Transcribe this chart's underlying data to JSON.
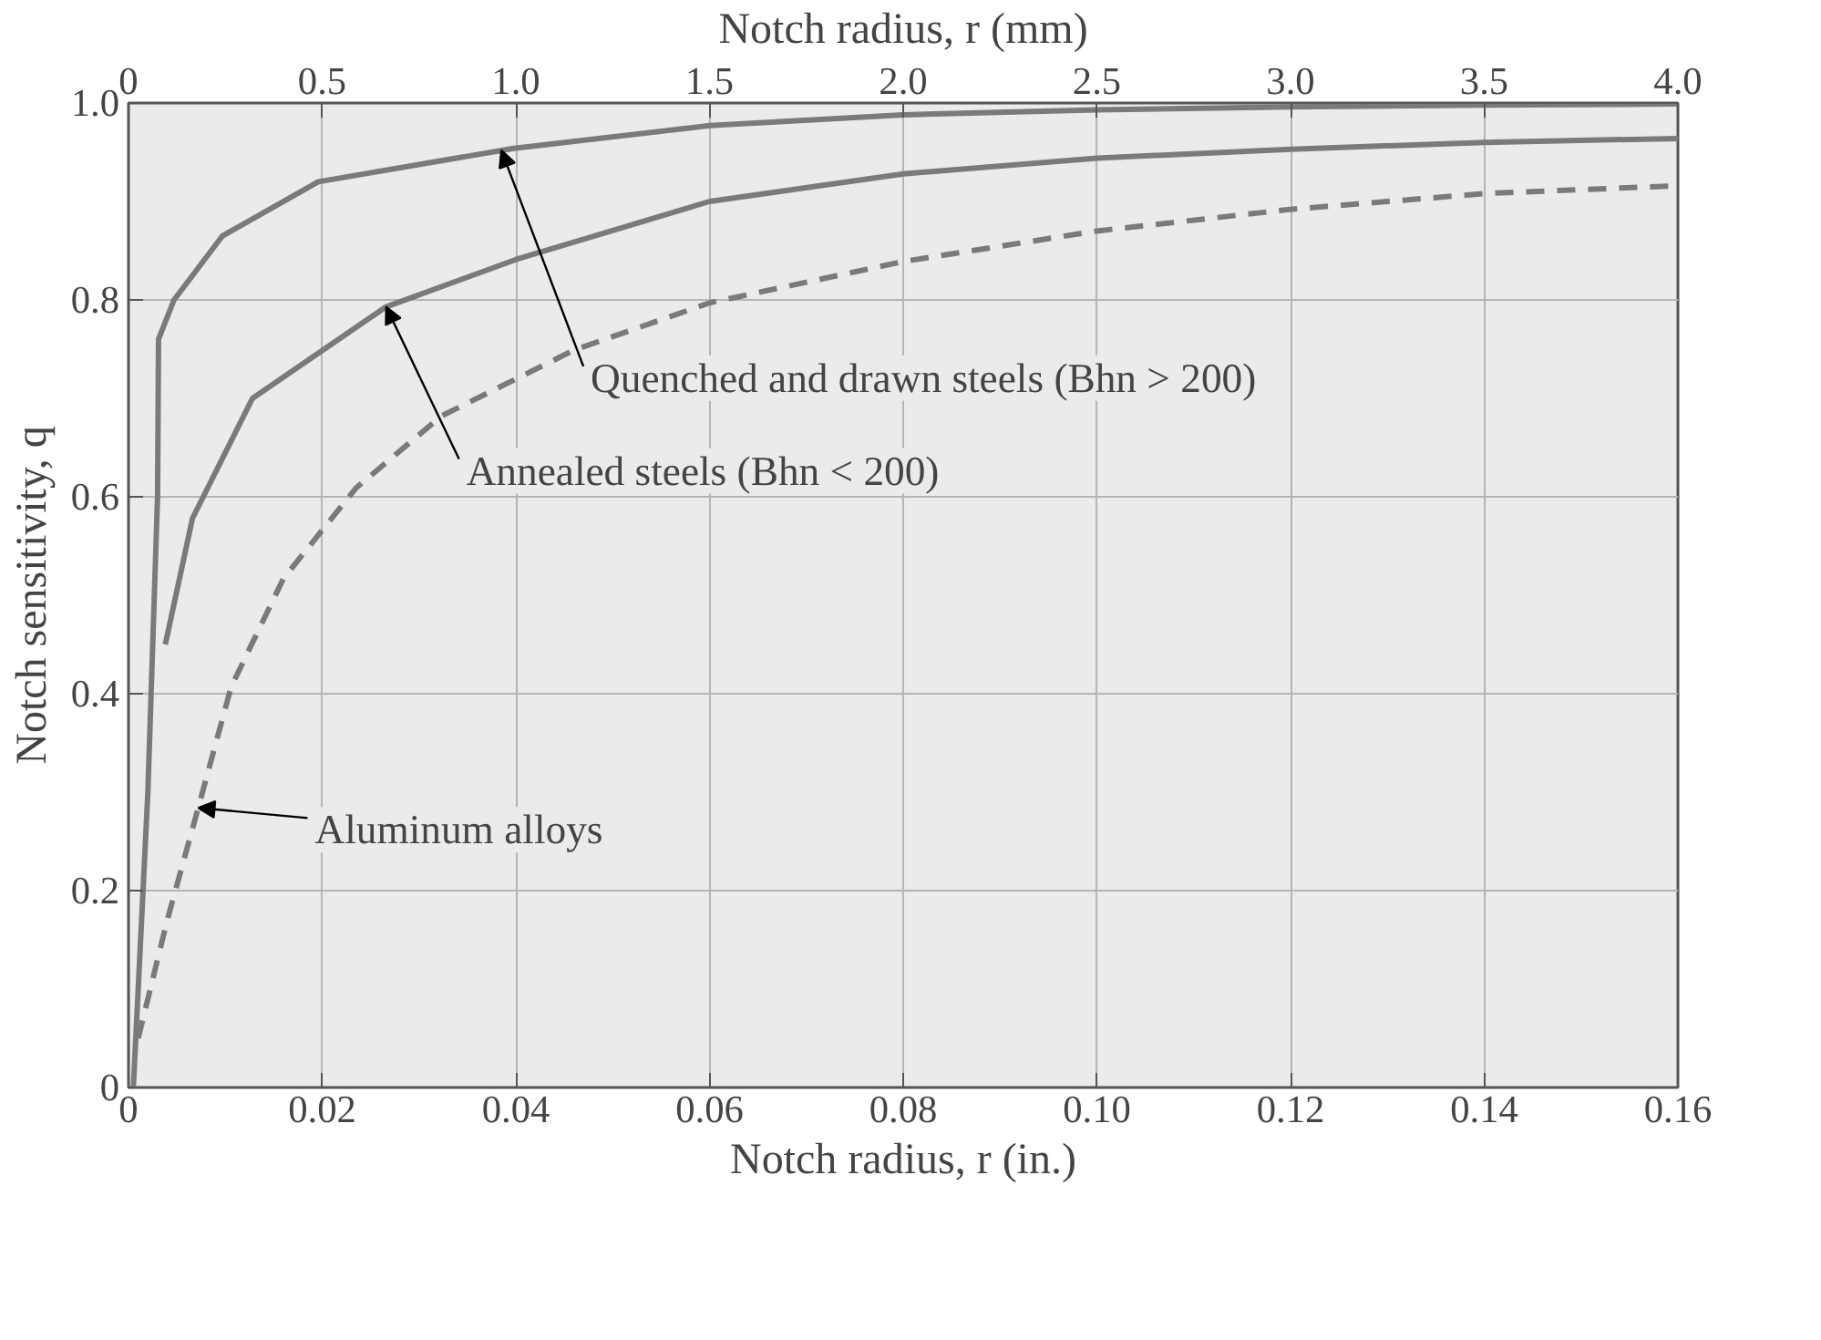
{
  "chart_data": {
    "type": "line",
    "xlabel": "Notch radius, r (in.)",
    "x2label": "Notch radius, r (mm)",
    "ylabel": "Notch sensitivity, q",
    "xlim": [
      0,
      0.16
    ],
    "xticks": [
      {
        "value": 0,
        "label": "0"
      },
      0.02,
      0.04,
      0.06,
      0.08,
      {
        "value": 0.1,
        "label": "0.10"
      },
      0.12,
      0.14,
      0.16
    ],
    "x2lim": [
      0,
      4.0
    ],
    "x2ticks": [
      0,
      0.5,
      {
        "value": 1,
        "label": "1.0"
      },
      1.5,
      {
        "value": 2,
        "label": "2.0"
      },
      2.5,
      {
        "value": 3,
        "label": "3.0"
      },
      3.5,
      {
        "value": 4,
        "label": "4.0"
      }
    ],
    "ylim": [
      0,
      1.0
    ],
    "yticks": [
      0,
      0.2,
      0.4,
      0.6,
      0.8,
      {
        "value": 1,
        "label": "1.0"
      }
    ],
    "grid": true,
    "marker": "none",
    "series": [
      {
        "color": "#7a7a7a",
        "line_style": "solid",
        "x": [
          0.0005,
          0.002,
          0.003,
          0.0031,
          0.0047,
          0.0097,
          0.0196,
          0.0398,
          0.06,
          0.08,
          0.1,
          0.12,
          0.14,
          0.16
        ],
        "values": [
          0,
          0.3,
          0.6,
          0.76,
          0.8,
          0.865,
          0.92,
          0.954,
          0.977,
          0.988,
          0.993,
          0.996,
          0.998,
          0.999
        ]
      },
      {
        "color": "#7a7a7a",
        "line_style": "solid",
        "x": [
          0.0038,
          0.0066,
          0.0128,
          0.0266,
          0.04,
          0.06,
          0.08,
          0.1,
          0.12,
          0.14,
          0.16
        ],
        "values": [
          0.45,
          0.578,
          0.7,
          0.793,
          0.841,
          0.9,
          0.928,
          0.944,
          0.953,
          0.96,
          0.964
        ]
      },
      {
        "color": "#7a7a7a",
        "line_style": "dashed",
        "x": [
          0.001,
          0.004,
          0.0072,
          0.0106,
          0.016,
          0.0235,
          0.0323,
          0.046,
          0.06,
          0.08,
          0.1,
          0.12,
          0.14,
          0.16
        ],
        "values": [
          0.05,
          0.17,
          0.284,
          0.407,
          0.517,
          0.609,
          0.682,
          0.749,
          0.797,
          0.839,
          0.87,
          0.892,
          0.908,
          0.916
        ]
      }
    ],
    "annotations": [
      {
        "text": "Quenched and drawn steels (Bhn > 200)",
        "x": 0.0385,
        "y": 0.952
      },
      {
        "text": "Annealed steels (Bhn < 200)",
        "x": 0.0266,
        "y": 0.793
      },
      {
        "text": "Aluminum alloys",
        "x": 0.0072,
        "y": 0.284
      }
    ]
  }
}
